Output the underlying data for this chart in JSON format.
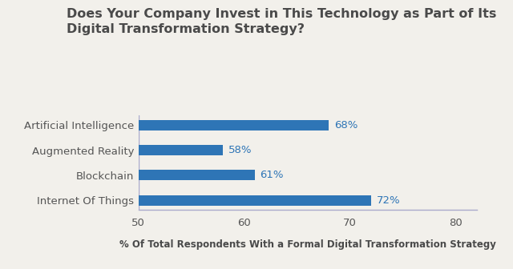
{
  "title_line1": "Does Your Company Invest in This Technology as Part of Its",
  "title_line2": "Digital Transformation Strategy?",
  "categories": [
    "Artificial Intelligence",
    "Augmented Reality",
    "Blockchain",
    "Internet Of Things"
  ],
  "values": [
    68,
    58,
    61,
    72
  ],
  "bar_color": "#2E75B6",
  "label_color": "#2E75B6",
  "title_color": "#4A4A4A",
  "xlabel": "% Of Total Respondents With a Formal Digital Transformation Strategy",
  "xlabel_color": "#4A4A4A",
  "tick_label_color": "#555555",
  "xlim": [
    50,
    82
  ],
  "xticks": [
    50,
    60,
    70,
    80
  ],
  "background_color": "#F2F0EB",
  "bar_height": 0.42,
  "title_fontsize": 11.5,
  "xlabel_fontsize": 8.5,
  "tick_fontsize": 9.5,
  "label_fontsize": 9.5,
  "ytick_fontsize": 9.5,
  "spine_color": "#AAAACC"
}
